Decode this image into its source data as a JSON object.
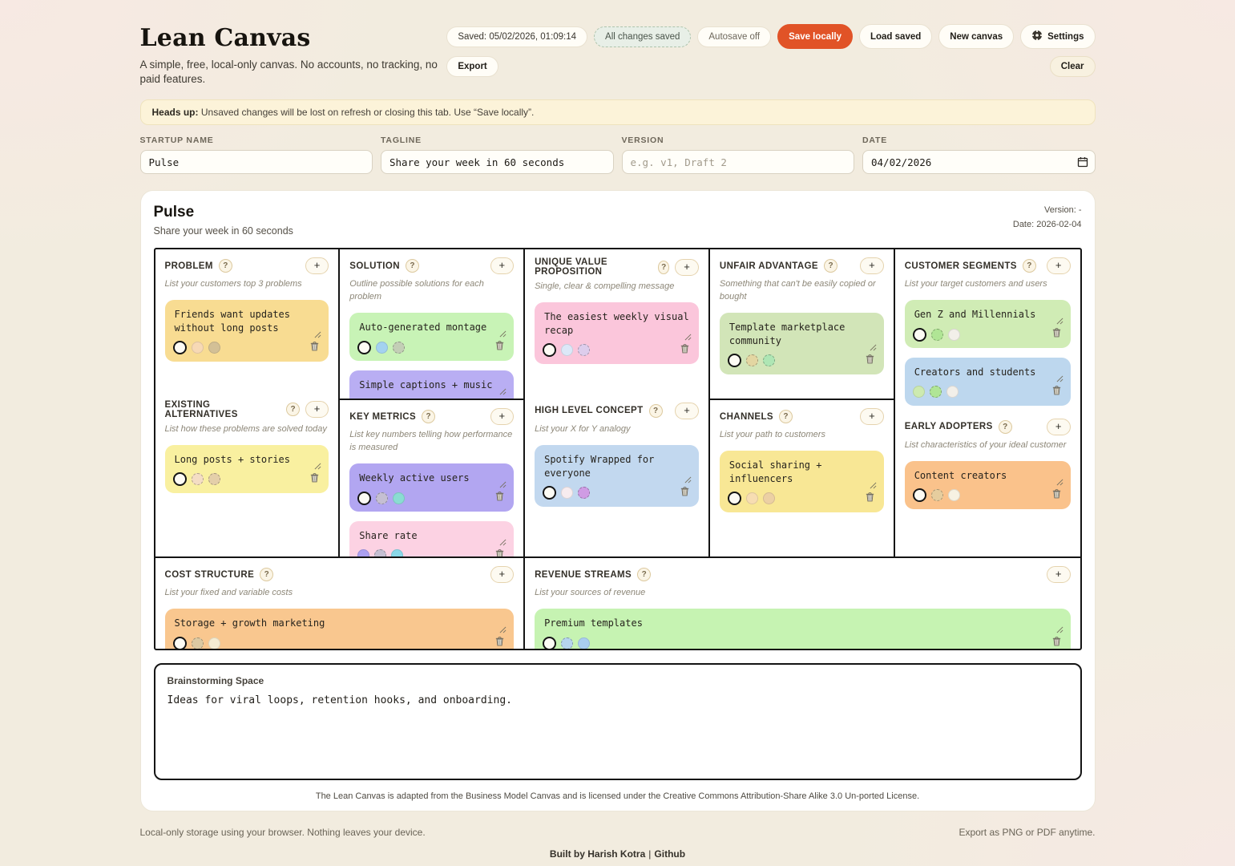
{
  "ui": {
    "help_label": "?",
    "add_label": "+"
  },
  "header": {
    "title": "Lean Canvas",
    "subtitle": "A simple, free, local-only canvas. No accounts, no tracking, no paid features.",
    "chips": {
      "saved": "Saved: 05/02/2026, 01:09:14",
      "changes": "All changes saved",
      "autosave": "Autosave off"
    },
    "buttons": {
      "save_locally": "Save locally",
      "load_saved": "Load saved",
      "new_canvas": "New canvas",
      "settings": "Settings",
      "export": "Export",
      "clear": "Clear"
    },
    "accent_color": "#e15327"
  },
  "banner": {
    "bold": "Heads up:",
    "text": " Unsaved changes will be lost on refresh or closing this tab. Use “Save locally”."
  },
  "form": {
    "startup_name": {
      "label": "STARTUP NAME",
      "value": "Pulse"
    },
    "tagline": {
      "label": "TAGLINE",
      "value": "Share your week in 60 seconds"
    },
    "version": {
      "label": "VERSION",
      "value": "",
      "placeholder": "e.g. v1, Draft 2"
    },
    "date": {
      "label": "DATE",
      "value": "04/02/2026"
    }
  },
  "canvas": {
    "name": "Pulse",
    "tagline": "Share your week in 60 seconds",
    "version_line": "Version: -",
    "date_line": "Date: 2026-02-04",
    "sections": {
      "problem": {
        "title": "PROBLEM",
        "hint": "List your customers top 3 problems",
        "notes": [
          {
            "text": "Friends want updates without long posts",
            "color": "#f8dc92",
            "dots": [
              {
                "color": "#fdfbf4",
                "ring": true
              },
              {
                "color": "#f7d9b5"
              },
              {
                "color": "#d3c096"
              }
            ]
          }
        ]
      },
      "existing_alternatives": {
        "title": "EXISTING ALTERNATIVES",
        "hint": "List how these problems are solved today",
        "notes": [
          {
            "text": "Long posts + stories",
            "color": "#f9f0a0",
            "dots": [
              {
                "color": "#fdfbf4",
                "ring": true
              },
              {
                "color": "#f4ddc4",
                "dotted": true
              },
              {
                "color": "#e4cfa9",
                "dotted": true
              }
            ]
          }
        ]
      },
      "solution": {
        "title": "SOLUTION",
        "hint": "Outline possible solutions for each problem",
        "notes": [
          {
            "text": "Auto-generated montage",
            "color": "#c8f3b6",
            "dots": [
              {
                "color": "#fdfbf4",
                "ring": true
              },
              {
                "color": "#a3d2f0"
              },
              {
                "color": "#c3ceb6",
                "dotted": true
              }
            ]
          },
          {
            "text": "Simple captions + music",
            "color": "#b9aef3",
            "dots": [
              {
                "color": "#ccf4ad"
              },
              {
                "color": "#a3d2f0"
              },
              {
                "color": "#b7dc94"
              }
            ]
          }
        ]
      },
      "key_metrics": {
        "title": "KEY METRICS",
        "hint": "List key numbers telling how performance is measured",
        "notes": [
          {
            "text": "Weekly active users",
            "color": "#b2a6f1",
            "dots": [
              {
                "color": "#fdfbf4",
                "ring": true
              },
              {
                "color": "#c5bfd2",
                "dotted": true
              },
              {
                "color": "#8adcd2"
              }
            ]
          },
          {
            "text": "Share rate",
            "color": "#fcd2e3",
            "dots": [
              {
                "color": "#ab9ff0"
              },
              {
                "color": "#c5bfd2",
                "dotted": true
              },
              {
                "color": "#8ad8e8"
              }
            ]
          }
        ]
      },
      "uvp": {
        "title": "UNIQUE VALUE PROPOSITION",
        "hint": "Single, clear & compelling message",
        "notes": [
          {
            "text": "The easiest weekly visual recap",
            "color": "#fbc6db",
            "dots": [
              {
                "color": "#fdfbf4",
                "ring": true
              },
              {
                "color": "#dce8f8"
              },
              {
                "color": "#ddcdec",
                "dotted": true
              }
            ]
          }
        ]
      },
      "high_level_concept": {
        "title": "HIGH LEVEL CONCEPT",
        "hint": "List your X for Y analogy",
        "notes": [
          {
            "text": "Spotify Wrapped for everyone",
            "color": "#c2d8ef",
            "dots": [
              {
                "color": "#fdfbf4",
                "ring": true
              },
              {
                "color": "#f7ecef"
              },
              {
                "color": "#cf9ce4",
                "dotted": true
              }
            ]
          }
        ]
      },
      "unfair_advantage": {
        "title": "UNFAIR ADVANTAGE",
        "hint": "Something that can't be easily copied or bought",
        "notes": [
          {
            "text": "Template marketplace community",
            "color": "#d2e5b8",
            "dots": [
              {
                "color": "#fdfbf4",
                "ring": true
              },
              {
                "color": "#e3d6a2",
                "dotted": true
              },
              {
                "color": "#aee6b4",
                "dotted": true
              }
            ]
          }
        ]
      },
      "channels": {
        "title": "CHANNELS",
        "hint": "List your path to customers",
        "notes": [
          {
            "text": "Social sharing + influencers",
            "color": "#f8e795",
            "dots": [
              {
                "color": "#fdfbf4",
                "ring": true
              },
              {
                "color": "#f7ddb2"
              },
              {
                "color": "#ecd0a4"
              }
            ]
          }
        ]
      },
      "customer_segments": {
        "title": "CUSTOMER SEGMENTS",
        "hint": "List your target customers and users",
        "notes": [
          {
            "text": "Gen Z and Millennials",
            "color": "#d0ecb5",
            "dots": [
              {
                "color": "#fdfbf4",
                "ring": true
              },
              {
                "color": "#b0e595",
                "dotted": true
              },
              {
                "color": "#f2efe9"
              }
            ]
          },
          {
            "text": "Creators and students",
            "color": "#bdd7ee",
            "dots": [
              {
                "color": "#cdeab0"
              },
              {
                "color": "#b0e595",
                "dotted": true
              },
              {
                "color": "#f2efe9"
              }
            ]
          }
        ]
      },
      "early_adopters": {
        "title": "EARLY ADOPTERS",
        "hint": "List characteristics of your ideal customer",
        "notes": [
          {
            "text": "Content creators",
            "color": "#fac28b",
            "dots": [
              {
                "color": "#fdfbf4",
                "ring": true
              },
              {
                "color": "#e6cd9e",
                "dotted": true
              },
              {
                "color": "#f7f2e3"
              }
            ]
          }
        ]
      },
      "cost_structure": {
        "title": "COST STRUCTURE",
        "hint": "List your fixed and variable costs",
        "notes": [
          {
            "text": "Storage + growth marketing",
            "color": "#f9c78f",
            "dots": [
              {
                "color": "#fdfbf4",
                "ring": true
              },
              {
                "color": "#dcc9a2",
                "dotted": true
              },
              {
                "color": "#f5ecd2"
              }
            ]
          }
        ]
      },
      "revenue_streams": {
        "title": "REVENUE STREAMS",
        "hint": "List your sources of revenue",
        "notes": [
          {
            "text": "Premium templates",
            "color": "#c6f3b2",
            "dots": [
              {
                "color": "#fdfbf4",
                "ring": true
              },
              {
                "color": "#b5d4ee",
                "dotted": true
              },
              {
                "color": "#a9cdf0"
              }
            ]
          }
        ]
      }
    }
  },
  "brainstorm": {
    "label": "Brainstorming Space",
    "text": "Ideas for viral loops, retention hooks, and onboarding."
  },
  "footer": {
    "license": "The Lean Canvas is adapted from the Business Model Canvas and is licensed under the Creative Commons Attribution-Share Alike 3.0 Un-ported License.",
    "storage_note": "Local-only storage using your browser. Nothing leaves your device.",
    "export_note": "Export as PNG or PDF anytime.",
    "built_by": "Built by Harish Kotra",
    "separator": "|",
    "github": "Github"
  }
}
